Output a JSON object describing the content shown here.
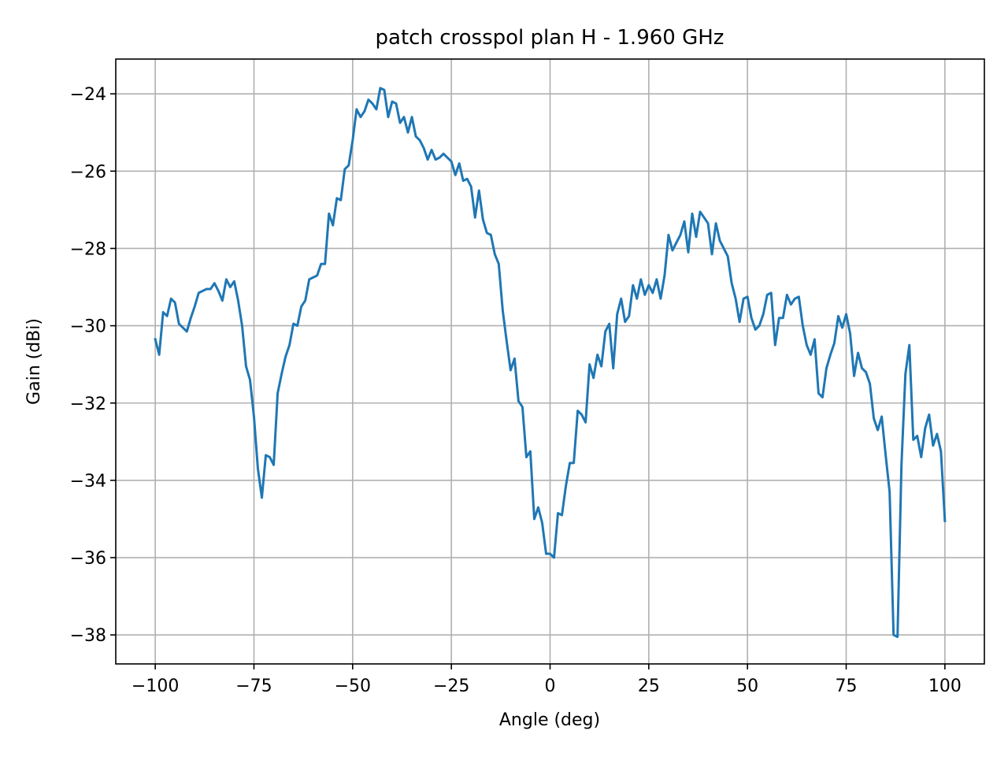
{
  "chart_data": {
    "type": "line",
    "title": "patch crosspol plan H - 1.960 GHz",
    "xlabel": "Angle (deg)",
    "ylabel": "Gain (dBi)",
    "xlim": [
      -110,
      110
    ],
    "ylim": [
      -38.75,
      -23.1
    ],
    "grid": true,
    "legend": "none",
    "x_ticks": [
      -100,
      -75,
      -50,
      -25,
      0,
      25,
      50,
      75,
      100
    ],
    "x_tick_labels": [
      "−100",
      "−75",
      "−50",
      "−25",
      "0",
      "25",
      "50",
      "75",
      "100"
    ],
    "y_ticks": [
      -38,
      -36,
      -34,
      -32,
      -30,
      -28,
      -26,
      -24
    ],
    "y_tick_labels": [
      "−38",
      "−36",
      "−34",
      "−32",
      "−30",
      "−28",
      "−26",
      "−24"
    ],
    "series": [
      {
        "color": "#1f77b4",
        "x": [
          -100,
          -99,
          -98,
          -97,
          -96,
          -95,
          -94,
          -93,
          -92,
          -91,
          -90,
          -89,
          -88,
          -87,
          -86,
          -85,
          -84,
          -83,
          -82,
          -81,
          -80,
          -79,
          -78,
          -77,
          -76,
          -75,
          -74,
          -73,
          -72,
          -71,
          -70,
          -69,
          -68,
          -67,
          -66,
          -65,
          -64,
          -63,
          -62,
          -61,
          -60,
          -59,
          -58,
          -57,
          -56,
          -55,
          -54,
          -53,
          -52,
          -51,
          -50,
          -49,
          -48,
          -47,
          -46,
          -45,
          -44,
          -43,
          -42,
          -41,
          -40,
          -39,
          -38,
          -37,
          -36,
          -35,
          -34,
          -33,
          -32,
          -31,
          -30,
          -29,
          -28,
          -27,
          -26,
          -25,
          -24,
          -23,
          -22,
          -21,
          -20,
          -19,
          -18,
          -17,
          -16,
          -15,
          -14,
          -13,
          -12,
          -11,
          -10,
          -9,
          -8,
          -7,
          -6,
          -5,
          -4,
          -3,
          -2,
          -1,
          0,
          1,
          2,
          3,
          4,
          5,
          6,
          7,
          8,
          9,
          10,
          11,
          12,
          13,
          14,
          15,
          16,
          17,
          18,
          19,
          20,
          21,
          22,
          23,
          24,
          25,
          26,
          27,
          28,
          29,
          30,
          31,
          32,
          33,
          34,
          35,
          36,
          37,
          38,
          39,
          40,
          41,
          42,
          43,
          44,
          45,
          46,
          47,
          48,
          49,
          50,
          51,
          52,
          53,
          54,
          55,
          56,
          57,
          58,
          59,
          60,
          61,
          62,
          63,
          64,
          65,
          66,
          67,
          68,
          69,
          70,
          71,
          72,
          73,
          74,
          75,
          76,
          77,
          78,
          79,
          80,
          81,
          82,
          83,
          84,
          85,
          86,
          87,
          88,
          89,
          90,
          91,
          92,
          93,
          94,
          95,
          96,
          97,
          98,
          99,
          100
        ],
        "y": [
          -30.35,
          -30.75,
          -29.65,
          -29.75,
          -29.3,
          -29.4,
          -29.95,
          -30.05,
          -30.15,
          -29.8,
          -29.5,
          -29.15,
          -29.1,
          -29.05,
          -29.05,
          -28.9,
          -29.1,
          -29.35,
          -28.8,
          -29.0,
          -28.85,
          -29.35,
          -30.0,
          -31.05,
          -31.4,
          -32.35,
          -33.7,
          -34.45,
          -33.35,
          -33.4,
          -33.6,
          -31.75,
          -31.25,
          -30.8,
          -30.5,
          -29.95,
          -30.0,
          -29.5,
          -29.35,
          -28.8,
          -28.75,
          -28.7,
          -28.4,
          -28.4,
          -27.1,
          -27.4,
          -26.7,
          -26.75,
          -25.95,
          -25.85,
          -25.2,
          -24.4,
          -24.6,
          -24.45,
          -24.15,
          -24.25,
          -24.4,
          -23.85,
          -23.9,
          -24.6,
          -24.2,
          -24.25,
          -24.75,
          -24.6,
          -25.0,
          -24.6,
          -25.1,
          -25.2,
          -25.4,
          -25.7,
          -25.45,
          -25.7,
          -25.65,
          -25.55,
          -25.65,
          -25.75,
          -26.1,
          -25.8,
          -26.25,
          -26.2,
          -26.4,
          -27.2,
          -26.5,
          -27.25,
          -27.6,
          -27.65,
          -28.15,
          -28.4,
          -29.6,
          -30.4,
          -31.15,
          -30.85,
          -31.95,
          -32.1,
          -33.4,
          -33.25,
          -35.0,
          -34.7,
          -35.1,
          -35.9,
          -35.9,
          -36.0,
          -34.85,
          -34.9,
          -34.15,
          -33.55,
          -33.55,
          -32.2,
          -32.3,
          -32.5,
          -31.0,
          -31.35,
          -30.75,
          -31.05,
          -30.15,
          -29.95,
          -31.1,
          -29.7,
          -29.3,
          -29.9,
          -29.75,
          -28.95,
          -29.3,
          -28.8,
          -29.2,
          -28.95,
          -29.15,
          -28.8,
          -29.3,
          -28.7,
          -27.65,
          -28.05,
          -27.85,
          -27.65,
          -27.3,
          -28.1,
          -27.1,
          -27.7,
          -27.05,
          -27.2,
          -27.35,
          -28.15,
          -27.35,
          -27.8,
          -28.0,
          -28.2,
          -28.9,
          -29.3,
          -29.9,
          -29.3,
          -29.25,
          -29.8,
          -30.1,
          -30.0,
          -29.7,
          -29.2,
          -29.15,
          -30.5,
          -29.8,
          -29.8,
          -29.2,
          -29.45,
          -29.3,
          -29.25,
          -30.0,
          -30.5,
          -30.75,
          -30.35,
          -31.75,
          -31.85,
          -31.1,
          -30.75,
          -30.45,
          -29.75,
          -30.05,
          -29.7,
          -30.2,
          -31.3,
          -30.7,
          -31.1,
          -31.2,
          -31.5,
          -32.4,
          -32.7,
          -32.35,
          -33.35,
          -34.3,
          -38.0,
          -38.05,
          -33.6,
          -31.25,
          -30.5,
          -32.95,
          -32.85,
          -33.4,
          -32.65,
          -32.3,
          -33.1,
          -32.8,
          -33.25,
          -35.05
        ]
      }
    ]
  }
}
